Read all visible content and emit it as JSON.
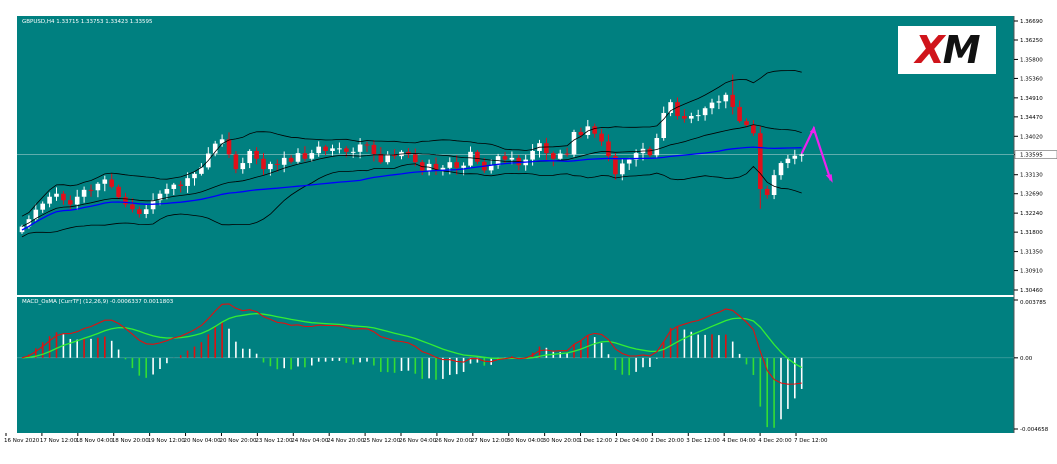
{
  "header": {
    "symbol_line": "GBPUSD,H4  1.33715 1.33753 1.33423 1.33595"
  },
  "indicator": {
    "label": "MACD_OsMA [CurrTF] (12,26,9) -0.0006337 0.0011803"
  },
  "logo": {
    "text": "XM"
  },
  "colors": {
    "background": "#008080",
    "grid": "#7fbcbc",
    "bull_candle": "#ffffff",
    "bear_candle": "#e0101a",
    "moving_average": "#0000ff",
    "bands": "#000000",
    "macd_line": "#e01010",
    "signal_line": "#33ee33",
    "hist_positive_up": "#e01010",
    "hist_positive_down": "#ffffff",
    "hist_negative_down": "#33dd33",
    "hist_negative_up": "#ffffff",
    "forecast_arrow": "#ee22ee"
  },
  "chart_data": [
    {
      "type": "candlestick",
      "title": "GBPUSD,H4",
      "y_ticks": [
        "1.36690",
        "1.36250",
        "1.35800",
        "1.35360",
        "1.34910",
        "1.34470",
        "1.34020",
        "1.33595",
        "1.33130",
        "1.32690",
        "1.32240",
        "1.31800",
        "1.31350",
        "1.30910",
        "1.30460"
      ],
      "current_price": "1.33595",
      "ylim": [
        1.3046,
        1.3669
      ],
      "x_ticks": [
        "16 Nov 2020",
        "17 Nov 12:00",
        "18 Nov 04:00",
        "18 Nov 20:00",
        "19 Nov 12:00",
        "20 Nov 04:00",
        "20 Nov 20:00",
        "23 Nov 12:00",
        "24 Nov 04:00",
        "24 Nov 20:00",
        "25 Nov 12:00",
        "26 Nov 04:00",
        "26 Nov 20:00",
        "27 Nov 12:00",
        "30 Nov 04:00",
        "30 Nov 20:00",
        "1 Dec 12:00",
        "2 Dec 04:00",
        "2 Dec 20:00",
        "3 Dec 12:00",
        "4 Dec 04:00",
        "4 Dec 20:00",
        "7 Dec 12:00"
      ],
      "close": [
        1.3193,
        1.321,
        1.3232,
        1.3246,
        1.3262,
        1.3269,
        1.3254,
        1.3244,
        1.3262,
        1.3278,
        1.3277,
        1.3292,
        1.3302,
        1.3285,
        1.3261,
        1.3244,
        1.3233,
        1.3222,
        1.3233,
        1.3254,
        1.3269,
        1.328,
        1.329,
        1.3287,
        1.3305,
        1.3315,
        1.333,
        1.3362,
        1.3385,
        1.3395,
        1.336,
        1.3326,
        1.334,
        1.3368,
        1.335,
        1.3326,
        1.3338,
        1.3336,
        1.3352,
        1.3343,
        1.3363,
        1.335,
        1.3363,
        1.3378,
        1.3368,
        1.3374,
        1.3374,
        1.3366,
        1.3366,
        1.3383,
        1.3382,
        1.3361,
        1.3342,
        1.336,
        1.3356,
        1.3366,
        1.336,
        1.3342,
        1.3323,
        1.3338,
        1.3325,
        1.3329,
        1.3342,
        1.3329,
        1.3334,
        1.3366,
        1.3343,
        1.3323,
        1.3335,
        1.3356,
        1.3348,
        1.3352,
        1.3335,
        1.3348,
        1.3368,
        1.3386,
        1.3363,
        1.335,
        1.3362,
        1.336,
        1.3412,
        1.3405,
        1.3425,
        1.3408,
        1.339,
        1.3356,
        1.3314,
        1.3339,
        1.3348,
        1.3363,
        1.3373,
        1.3358,
        1.3398,
        1.3456,
        1.3481,
        1.3449,
        1.3443,
        1.3449,
        1.3451,
        1.3467,
        1.348,
        1.3483,
        1.3498,
        1.347,
        1.3437,
        1.3428,
        1.3409,
        1.328,
        1.3266,
        1.3312,
        1.334,
        1.335,
        1.3357,
        1.336
      ]
    },
    {
      "type": "histogram+line",
      "title": "MACD_OsMA [CurrTF] (12,26,9)",
      "y_ticks": [
        "0.003785",
        "0.00",
        "-0.004658"
      ],
      "ylim": [
        -0.004658,
        0.003785
      ],
      "macd_last": -0.0006337,
      "signal_last": 0.0011803
    }
  ]
}
